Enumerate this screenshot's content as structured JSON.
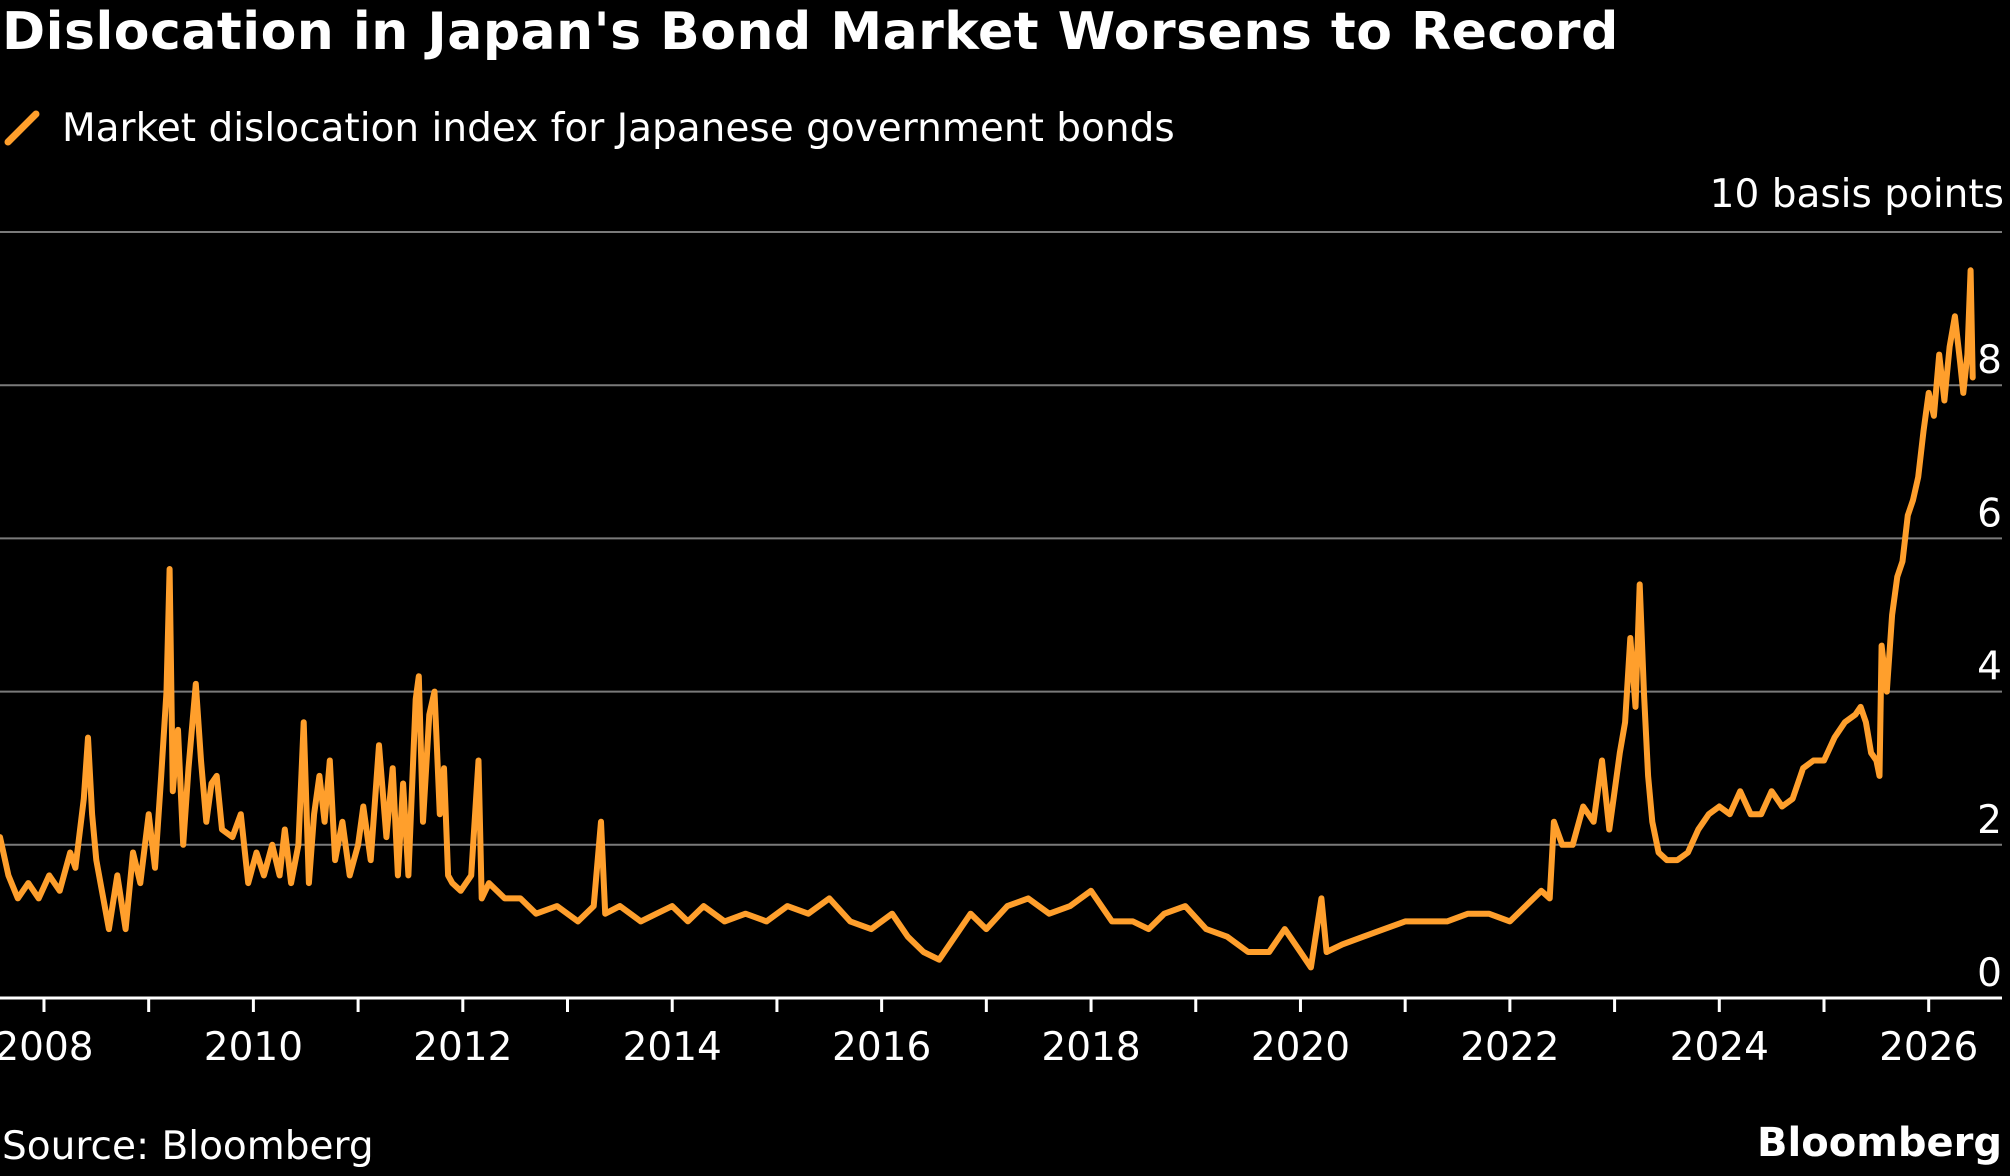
{
  "chart_data": {
    "type": "line",
    "title": "Dislocation in Japan's Bond Market Worsens to Record",
    "unit_label": "10 basis points",
    "xlabel": "",
    "ylabel": "",
    "x_ticks": [
      "2008",
      "2010",
      "2012",
      "2014",
      "2016",
      "2018",
      "2020",
      "2022",
      "2024",
      "2026"
    ],
    "y_ticks": [
      "0",
      "2",
      "4",
      "6",
      "8"
    ],
    "xlim": [
      2007.58,
      2026.7
    ],
    "ylim": [
      0,
      10
    ],
    "grid": true,
    "series": [
      {
        "name": "Market dislocation index for Japanese government bonds",
        "color": "#ff9f2c",
        "points": [
          [
            2007.58,
            2.1
          ],
          [
            2007.66,
            1.6
          ],
          [
            2007.75,
            1.3
          ],
          [
            2007.85,
            1.5
          ],
          [
            2007.95,
            1.3
          ],
          [
            2008.05,
            1.6
          ],
          [
            2008.15,
            1.4
          ],
          [
            2008.25,
            1.9
          ],
          [
            2008.3,
            1.7
          ],
          [
            2008.38,
            2.6
          ],
          [
            2008.42,
            3.4
          ],
          [
            2008.46,
            2.4
          ],
          [
            2008.5,
            1.8
          ],
          [
            2008.58,
            1.2
          ],
          [
            2008.62,
            0.9
          ],
          [
            2008.7,
            1.6
          ],
          [
            2008.78,
            0.9
          ],
          [
            2008.85,
            1.9
          ],
          [
            2008.92,
            1.5
          ],
          [
            2009.0,
            2.4
          ],
          [
            2009.06,
            1.7
          ],
          [
            2009.12,
            2.9
          ],
          [
            2009.17,
            4.0
          ],
          [
            2009.2,
            5.6
          ],
          [
            2009.23,
            2.7
          ],
          [
            2009.28,
            3.5
          ],
          [
            2009.33,
            2.0
          ],
          [
            2009.38,
            3.0
          ],
          [
            2009.45,
            4.1
          ],
          [
            2009.5,
            3.1
          ],
          [
            2009.55,
            2.3
          ],
          [
            2009.6,
            2.8
          ],
          [
            2009.65,
            2.9
          ],
          [
            2009.7,
            2.2
          ],
          [
            2009.8,
            2.1
          ],
          [
            2009.88,
            2.4
          ],
          [
            2009.95,
            1.5
          ],
          [
            2010.03,
            1.9
          ],
          [
            2010.1,
            1.6
          ],
          [
            2010.18,
            2.0
          ],
          [
            2010.25,
            1.6
          ],
          [
            2010.3,
            2.2
          ],
          [
            2010.36,
            1.5
          ],
          [
            2010.43,
            2.0
          ],
          [
            2010.48,
            3.6
          ],
          [
            2010.53,
            1.5
          ],
          [
            2010.58,
            2.4
          ],
          [
            2010.63,
            2.9
          ],
          [
            2010.68,
            2.3
          ],
          [
            2010.73,
            3.1
          ],
          [
            2010.78,
            1.8
          ],
          [
            2010.85,
            2.3
          ],
          [
            2010.92,
            1.6
          ],
          [
            2011.0,
            2.0
          ],
          [
            2011.05,
            2.5
          ],
          [
            2011.12,
            1.8
          ],
          [
            2011.2,
            3.3
          ],
          [
            2011.27,
            2.1
          ],
          [
            2011.33,
            3.0
          ],
          [
            2011.38,
            1.6
          ],
          [
            2011.43,
            2.8
          ],
          [
            2011.48,
            1.6
          ],
          [
            2011.55,
            3.9
          ],
          [
            2011.58,
            4.2
          ],
          [
            2011.62,
            2.3
          ],
          [
            2011.68,
            3.7
          ],
          [
            2011.73,
            4.0
          ],
          [
            2011.78,
            2.4
          ],
          [
            2011.82,
            3.0
          ],
          [
            2011.86,
            1.6
          ],
          [
            2011.9,
            1.5
          ],
          [
            2011.98,
            1.4
          ],
          [
            2012.08,
            1.6
          ],
          [
            2012.15,
            3.1
          ],
          [
            2012.18,
            1.3
          ],
          [
            2012.25,
            1.5
          ],
          [
            2012.4,
            1.3
          ],
          [
            2012.55,
            1.3
          ],
          [
            2012.7,
            1.1
          ],
          [
            2012.9,
            1.2
          ],
          [
            2013.1,
            1.0
          ],
          [
            2013.25,
            1.2
          ],
          [
            2013.32,
            2.3
          ],
          [
            2013.36,
            1.1
          ],
          [
            2013.5,
            1.2
          ],
          [
            2013.7,
            1.0
          ],
          [
            2013.85,
            1.1
          ],
          [
            2014.0,
            1.2
          ],
          [
            2014.15,
            1.0
          ],
          [
            2014.3,
            1.2
          ],
          [
            2014.5,
            1.0
          ],
          [
            2014.7,
            1.1
          ],
          [
            2014.9,
            1.0
          ],
          [
            2015.1,
            1.2
          ],
          [
            2015.3,
            1.1
          ],
          [
            2015.5,
            1.3
          ],
          [
            2015.7,
            1.0
          ],
          [
            2015.9,
            0.9
          ],
          [
            2016.1,
            1.1
          ],
          [
            2016.25,
            0.8
          ],
          [
            2016.4,
            0.6
          ],
          [
            2016.55,
            0.5
          ],
          [
            2016.7,
            0.8
          ],
          [
            2016.85,
            1.1
          ],
          [
            2017.0,
            0.9
          ],
          [
            2017.2,
            1.2
          ],
          [
            2017.4,
            1.3
          ],
          [
            2017.6,
            1.1
          ],
          [
            2017.8,
            1.2
          ],
          [
            2018.0,
            1.4
          ],
          [
            2018.2,
            1.0
          ],
          [
            2018.4,
            1.0
          ],
          [
            2018.55,
            0.9
          ],
          [
            2018.7,
            1.1
          ],
          [
            2018.9,
            1.2
          ],
          [
            2019.1,
            0.9
          ],
          [
            2019.3,
            0.8
          ],
          [
            2019.5,
            0.6
          ],
          [
            2019.7,
            0.6
          ],
          [
            2019.85,
            0.9
          ],
          [
            2020.0,
            0.6
          ],
          [
            2020.1,
            0.4
          ],
          [
            2020.2,
            1.3
          ],
          [
            2020.25,
            0.6
          ],
          [
            2020.4,
            0.7
          ],
          [
            2020.6,
            0.8
          ],
          [
            2020.8,
            0.9
          ],
          [
            2021.0,
            1.0
          ],
          [
            2021.2,
            1.0
          ],
          [
            2021.4,
            1.0
          ],
          [
            2021.6,
            1.1
          ],
          [
            2021.8,
            1.1
          ],
          [
            2022.0,
            1.0
          ],
          [
            2022.15,
            1.2
          ],
          [
            2022.3,
            1.4
          ],
          [
            2022.38,
            1.3
          ],
          [
            2022.42,
            2.3
          ],
          [
            2022.5,
            2.0
          ],
          [
            2022.6,
            2.0
          ],
          [
            2022.7,
            2.5
          ],
          [
            2022.8,
            2.3
          ],
          [
            2022.88,
            3.1
          ],
          [
            2022.95,
            2.2
          ],
          [
            2023.0,
            2.7
          ],
          [
            2023.05,
            3.2
          ],
          [
            2023.1,
            3.6
          ],
          [
            2023.15,
            4.7
          ],
          [
            2023.2,
            3.8
          ],
          [
            2023.24,
            5.4
          ],
          [
            2023.28,
            4.0
          ],
          [
            2023.32,
            2.9
          ],
          [
            2023.36,
            2.3
          ],
          [
            2023.42,
            1.9
          ],
          [
            2023.5,
            1.8
          ],
          [
            2023.6,
            1.8
          ],
          [
            2023.7,
            1.9
          ],
          [
            2023.8,
            2.2
          ],
          [
            2023.9,
            2.4
          ],
          [
            2024.0,
            2.5
          ],
          [
            2024.1,
            2.4
          ],
          [
            2024.2,
            2.7
          ],
          [
            2024.3,
            2.4
          ],
          [
            2024.4,
            2.4
          ],
          [
            2024.5,
            2.7
          ],
          [
            2024.6,
            2.5
          ],
          [
            2024.7,
            2.6
          ],
          [
            2024.8,
            3.0
          ],
          [
            2024.9,
            3.1
          ],
          [
            2025.0,
            3.1
          ],
          [
            2025.1,
            3.4
          ],
          [
            2025.2,
            3.6
          ],
          [
            2025.3,
            3.7
          ],
          [
            2025.35,
            3.8
          ],
          [
            2025.4,
            3.6
          ],
          [
            2025.45,
            3.2
          ],
          [
            2025.5,
            3.1
          ],
          [
            2025.53,
            2.9
          ],
          [
            2025.55,
            4.6
          ],
          [
            2025.6,
            4.0
          ],
          [
            2025.65,
            5.0
          ],
          [
            2025.7,
            5.5
          ],
          [
            2025.75,
            5.7
          ],
          [
            2025.8,
            6.3
          ],
          [
            2025.85,
            6.5
          ],
          [
            2025.9,
            6.8
          ],
          [
            2025.95,
            7.4
          ],
          [
            2026.0,
            7.9
          ],
          [
            2026.05,
            7.6
          ],
          [
            2026.1,
            8.4
          ],
          [
            2026.15,
            7.8
          ],
          [
            2026.2,
            8.5
          ],
          [
            2026.25,
            8.9
          ],
          [
            2026.3,
            8.3
          ],
          [
            2026.33,
            7.9
          ],
          [
            2026.37,
            8.4
          ],
          [
            2026.4,
            9.5
          ],
          [
            2026.42,
            8.1
          ]
        ]
      }
    ],
    "legend_placement": "top-left",
    "source": "Source: Bloomberg",
    "brand": "Bloomberg"
  },
  "colors": {
    "background": "#000000",
    "line": "#ff9f2c",
    "grid": "#7a7a7a",
    "axis": "#ffffff",
    "text": "#ffffff"
  }
}
